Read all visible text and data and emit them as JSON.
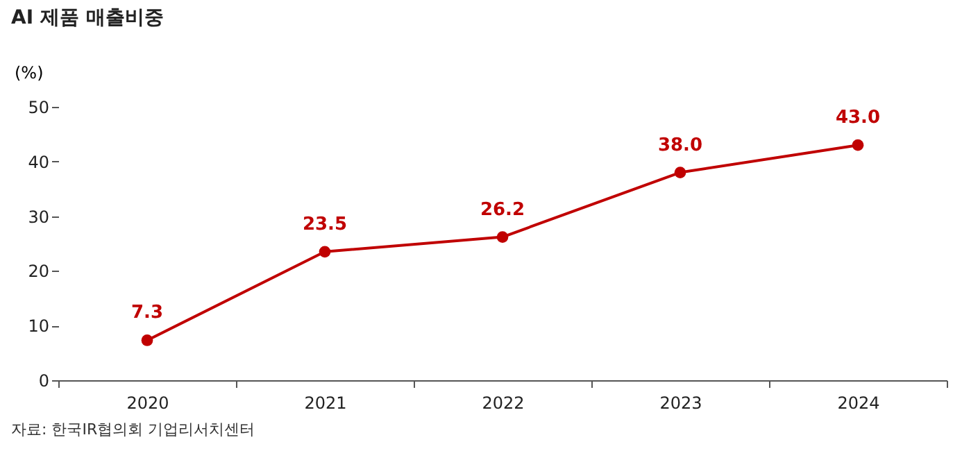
{
  "chart_data": {
    "type": "line",
    "title": "AI 제품 매출비중",
    "ylabel": "(%)",
    "categories": [
      "2020",
      "2021",
      "2022",
      "2023",
      "2024"
    ],
    "series": [
      {
        "color": "#c00000",
        "values": [
          7.3,
          23.5,
          26.2,
          38.0,
          43.0
        ],
        "value_labels": [
          "7.3",
          "23.5",
          "26.2",
          "38.0",
          "43.0"
        ]
      }
    ],
    "ylim": [
      0,
      50
    ],
    "yticks": [
      0,
      10,
      20,
      30,
      40,
      50
    ],
    "grid": false,
    "marker": "circle",
    "line_style": "solid",
    "annotations": [
      "자료: 한국IR협의회 기업리서치센터"
    ]
  }
}
